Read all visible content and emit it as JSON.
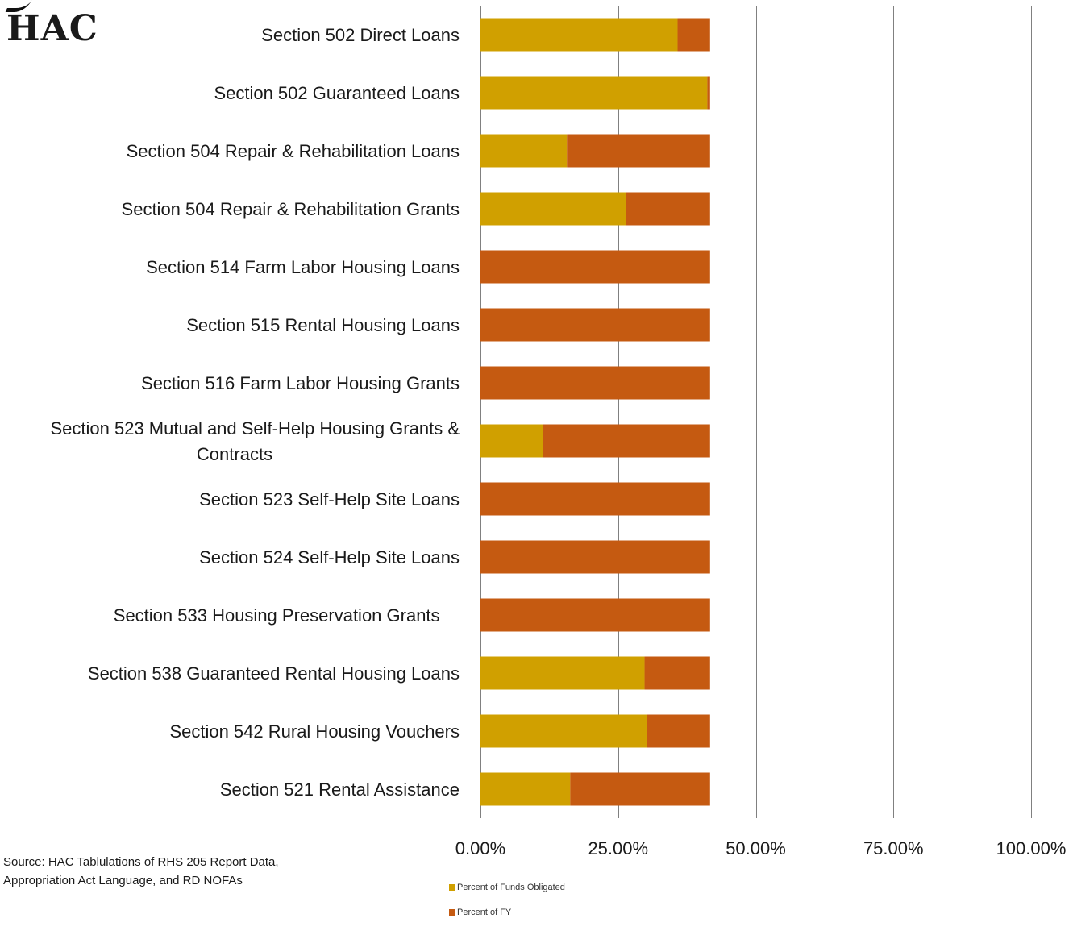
{
  "logo": {
    "text": "HAC"
  },
  "source": {
    "line1": "Source:  HAC Tablulations of RHS 205 Report Data,",
    "line2": "Appropriation Act Language, and RD NOFAs"
  },
  "colors": {
    "funds_obligated": "#D0A000",
    "percent_of_fy": "#C55A11",
    "gridline": "#808080"
  },
  "chart_data": {
    "type": "bar",
    "orientation": "horizontal",
    "stacked": true,
    "categories": [
      [
        "Section 502 Direct Loans"
      ],
      [
        "Section 502 Guaranteed Loans"
      ],
      [
        "Section 504 Repair & Rehabilitation Loans"
      ],
      [
        "Section 504 Repair & Rehabilitation Grants"
      ],
      [
        "Section 514 Farm Labor Housing Loans"
      ],
      [
        "Section 515 Rental Housing Loans"
      ],
      [
        "Section 516 Farm Labor Housing Grants"
      ],
      [
        "Section 523 Mutual and Self-Help Housing Grants &",
        "Contracts"
      ],
      [
        "Section 523 Self-Help Site Loans"
      ],
      [
        "Section 524 Self-Help Site Loans"
      ],
      [
        "Section 533 Housing Preservation Grants    "
      ],
      [
        "Section 538 Guaranteed Rental Housing Loans"
      ],
      [
        "Section 542 Rural Housing Vouchers"
      ],
      [
        "Section 521 Rental Assistance"
      ]
    ],
    "series": [
      {
        "name": "Percent of Funds Obligated",
        "color": "#D0A000",
        "values": [
          35.8,
          41.2,
          15.7,
          26.5,
          0,
          0,
          0,
          11.3,
          0,
          0,
          0,
          29.8,
          30.2,
          16.3
        ]
      },
      {
        "name": "Percent of FY",
        "color": "#C55A11",
        "values": [
          5.9,
          0.5,
          26.0,
          15.2,
          41.7,
          41.7,
          41.7,
          30.4,
          41.7,
          41.7,
          41.7,
          11.9,
          11.5,
          25.4
        ]
      }
    ],
    "x_ticks": [
      "0.00%",
      "25.00%",
      "50.00%",
      "75.00%",
      "100.00%"
    ],
    "xlim": [
      0,
      100
    ],
    "grid": true,
    "legend_position": "bottom"
  }
}
